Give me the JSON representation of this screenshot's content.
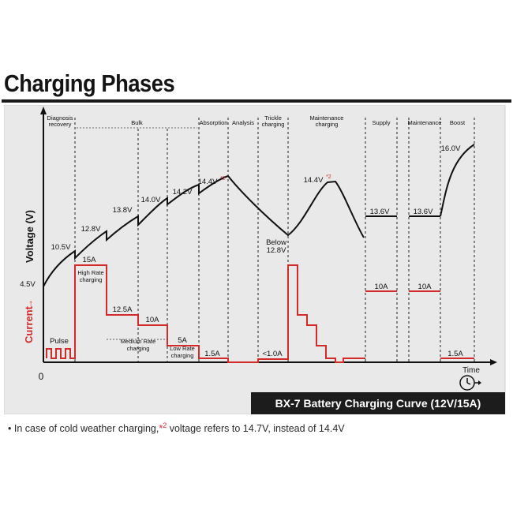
{
  "title": "Charging Phases",
  "footnote": {
    "bullet": "•",
    "text_before": "In case of cold weather charging,",
    "marker": "*",
    "sup": "2",
    "text_after": " voltage refers to 14.7V, instead of 14.4V"
  },
  "colors": {
    "background": "#e9e9e9",
    "voltage_line": "#111111",
    "current_line": "#d32a2a",
    "banner": "#1c1c1c",
    "banner_text": "#ffffff"
  },
  "chart_data": {
    "type": "line",
    "title": "BX-7 Battery Charging Curve (12V/15A)",
    "ylabel_voltage": "Voltage (V)",
    "ylabel_current": "Current",
    "xlabel": "Time",
    "origin_label": "0",
    "grid": false,
    "phases": [
      {
        "label": "Diagnosis recovery",
        "lines": [
          "Diagnosis",
          "recovery"
        ]
      },
      {
        "label": "Bulk",
        "lines": [
          "Bulk"
        ]
      },
      {
        "label": "Absorption",
        "lines": [
          "Absorption"
        ]
      },
      {
        "label": "Analysis",
        "lines": [
          "Analysis"
        ]
      },
      {
        "label": "Trickle charging",
        "lines": [
          "Trickle",
          "charging"
        ]
      },
      {
        "label": "Maintenance charging",
        "lines": [
          "Maintenance",
          "charging"
        ]
      },
      {
        "label": "Supply",
        "lines": [
          "Supply"
        ]
      },
      {
        "label": "Maintenance",
        "lines": [
          "Maintenance"
        ]
      },
      {
        "label": "Boost",
        "lines": [
          "Boost"
        ]
      }
    ],
    "voltage_labels": [
      {
        "text": "4.5V"
      },
      {
        "text": "10.5V"
      },
      {
        "text": "12.8V"
      },
      {
        "text": "13.8V"
      },
      {
        "text": "14.0V"
      },
      {
        "text": "14.2V"
      },
      {
        "text": "14.4V",
        "mark": "*2"
      },
      {
        "text": "Below",
        "text2": "12.8V"
      },
      {
        "text": "14.4V",
        "mark": "*2"
      },
      {
        "text": "13.6V"
      },
      {
        "text": "13.6V"
      },
      {
        "text": "16.0V"
      }
    ],
    "current_labels": [
      {
        "text": "Pulse"
      },
      {
        "text": "15A"
      },
      {
        "text": "High Rate",
        "text2": "charging"
      },
      {
        "text": "12.5A"
      },
      {
        "text": "10A"
      },
      {
        "text": "Medium Rate",
        "text2": "charging"
      },
      {
        "text": "5A"
      },
      {
        "text": "Low Rate",
        "text2": "charging"
      },
      {
        "text": "1.5A"
      },
      {
        "text": "<1.0A"
      },
      {
        "text": "10A"
      },
      {
        "text": "10A"
      },
      {
        "text": "1.5A"
      }
    ]
  }
}
